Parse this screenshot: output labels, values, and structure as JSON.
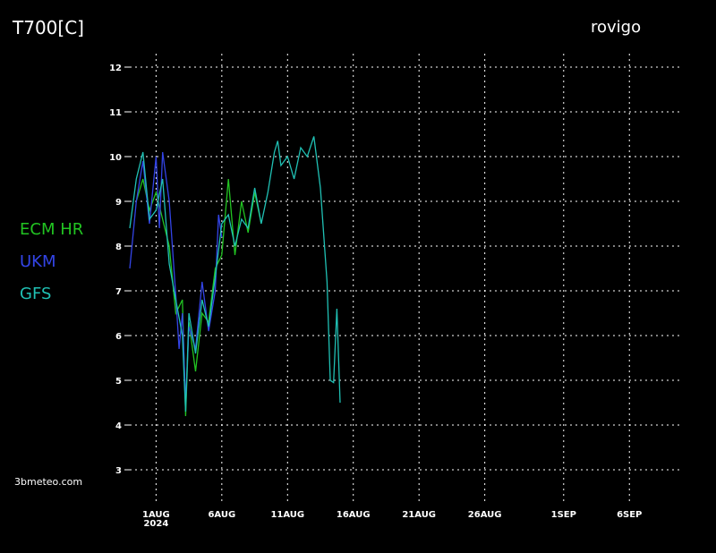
{
  "chart_data": {
    "type": "line",
    "title": "T700[C]",
    "location": "rovigo",
    "source": "3bmeteo.com",
    "year_label": "2024",
    "xlim": [
      -2,
      40
    ],
    "ylim": [
      2.3,
      12.3
    ],
    "xticks": [
      {
        "value": 0,
        "label": "1AUG"
      },
      {
        "value": 5,
        "label": "6AUG"
      },
      {
        "value": 10,
        "label": "11AUG"
      },
      {
        "value": 15,
        "label": "16AUG"
      },
      {
        "value": 20,
        "label": "21AUG"
      },
      {
        "value": 25,
        "label": "26AUG"
      },
      {
        "value": 31,
        "label": "1SEP"
      },
      {
        "value": 36,
        "label": "6SEP"
      }
    ],
    "yticks": [
      3,
      4,
      5,
      6,
      7,
      8,
      9,
      10,
      11,
      12
    ],
    "grid": true,
    "series": [
      {
        "name": "ECM HR",
        "color": "#22c422",
        "x": [
          -1.5,
          -1,
          -0.5,
          0,
          0.5,
          1,
          1.5,
          2,
          2.25,
          2.5,
          3,
          3.5,
          4,
          4.5,
          5,
          5.5,
          6,
          6.5,
          7,
          7.5,
          8
        ],
        "values": [
          9.0,
          9.5,
          8.8,
          9.2,
          8.6,
          8.0,
          6.5,
          6.8,
          4.2,
          6.3,
          5.2,
          6.5,
          6.3,
          7.5,
          7.8,
          9.5,
          7.8,
          9.0,
          8.3,
          9.2,
          8.5
        ]
      },
      {
        "name": "UKM",
        "color": "#3344e6",
        "x": [
          -2,
          -1.5,
          -1,
          -0.5,
          0,
          0.25,
          0.5,
          1,
          1.5,
          1.75,
          2,
          2.25,
          2.5,
          3,
          3.5,
          4,
          4.5,
          4.75,
          5
        ],
        "values": [
          7.5,
          9.0,
          9.9,
          8.5,
          10.0,
          8.4,
          10.1,
          9.0,
          6.9,
          5.7,
          6.5,
          4.5,
          6.2,
          5.7,
          7.2,
          6.1,
          7.0,
          8.7,
          8.2
        ]
      },
      {
        "name": "GFS",
        "color": "#20c0b4",
        "x": [
          -2,
          -1.5,
          -1,
          -0.5,
          0,
          0.5,
          1,
          1.5,
          2,
          2.25,
          2.5,
          3,
          3.5,
          4,
          4.5,
          5,
          5.5,
          6,
          6.5,
          7,
          7.5,
          8,
          8.5,
          9,
          9.25,
          9.5,
          10,
          10.5,
          11,
          11.5,
          12,
          12.5,
          13,
          13.25,
          13.5,
          13.75,
          14
        ],
        "values": [
          8.4,
          9.5,
          10.1,
          8.6,
          8.8,
          9.5,
          7.6,
          6.8,
          6.0,
          4.3,
          6.5,
          5.6,
          6.8,
          6.2,
          7.3,
          8.5,
          8.7,
          8.0,
          8.6,
          8.4,
          9.3,
          8.5,
          9.2,
          10.1,
          10.35,
          9.8,
          10.0,
          9.5,
          10.2,
          10.0,
          10.45,
          9.3,
          7.2,
          5.0,
          4.95,
          6.6,
          4.5
        ]
      }
    ]
  }
}
